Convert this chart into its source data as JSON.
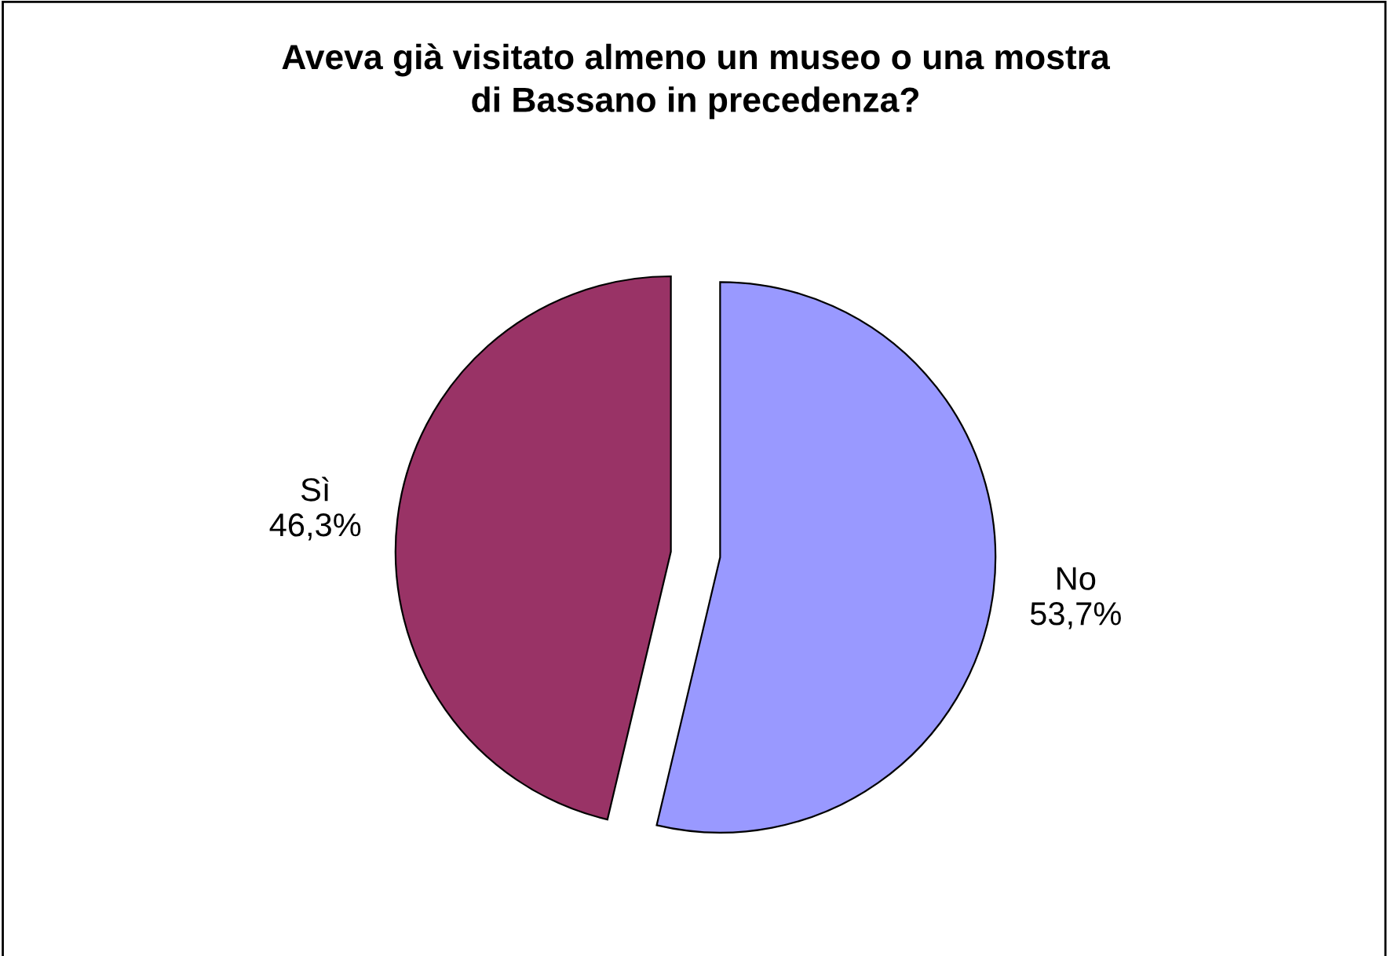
{
  "chart_data": {
    "type": "pie",
    "title": "Aveva già visitato almeno un museo o una mostra\ndi Bassano in precedenza?",
    "categories": [
      "No",
      "Sì"
    ],
    "values": [
      53.7,
      46.3
    ],
    "value_labels": [
      "53,7%",
      "46,3%"
    ],
    "colors": [
      "#9999ff",
      "#993366"
    ],
    "legend": false
  }
}
